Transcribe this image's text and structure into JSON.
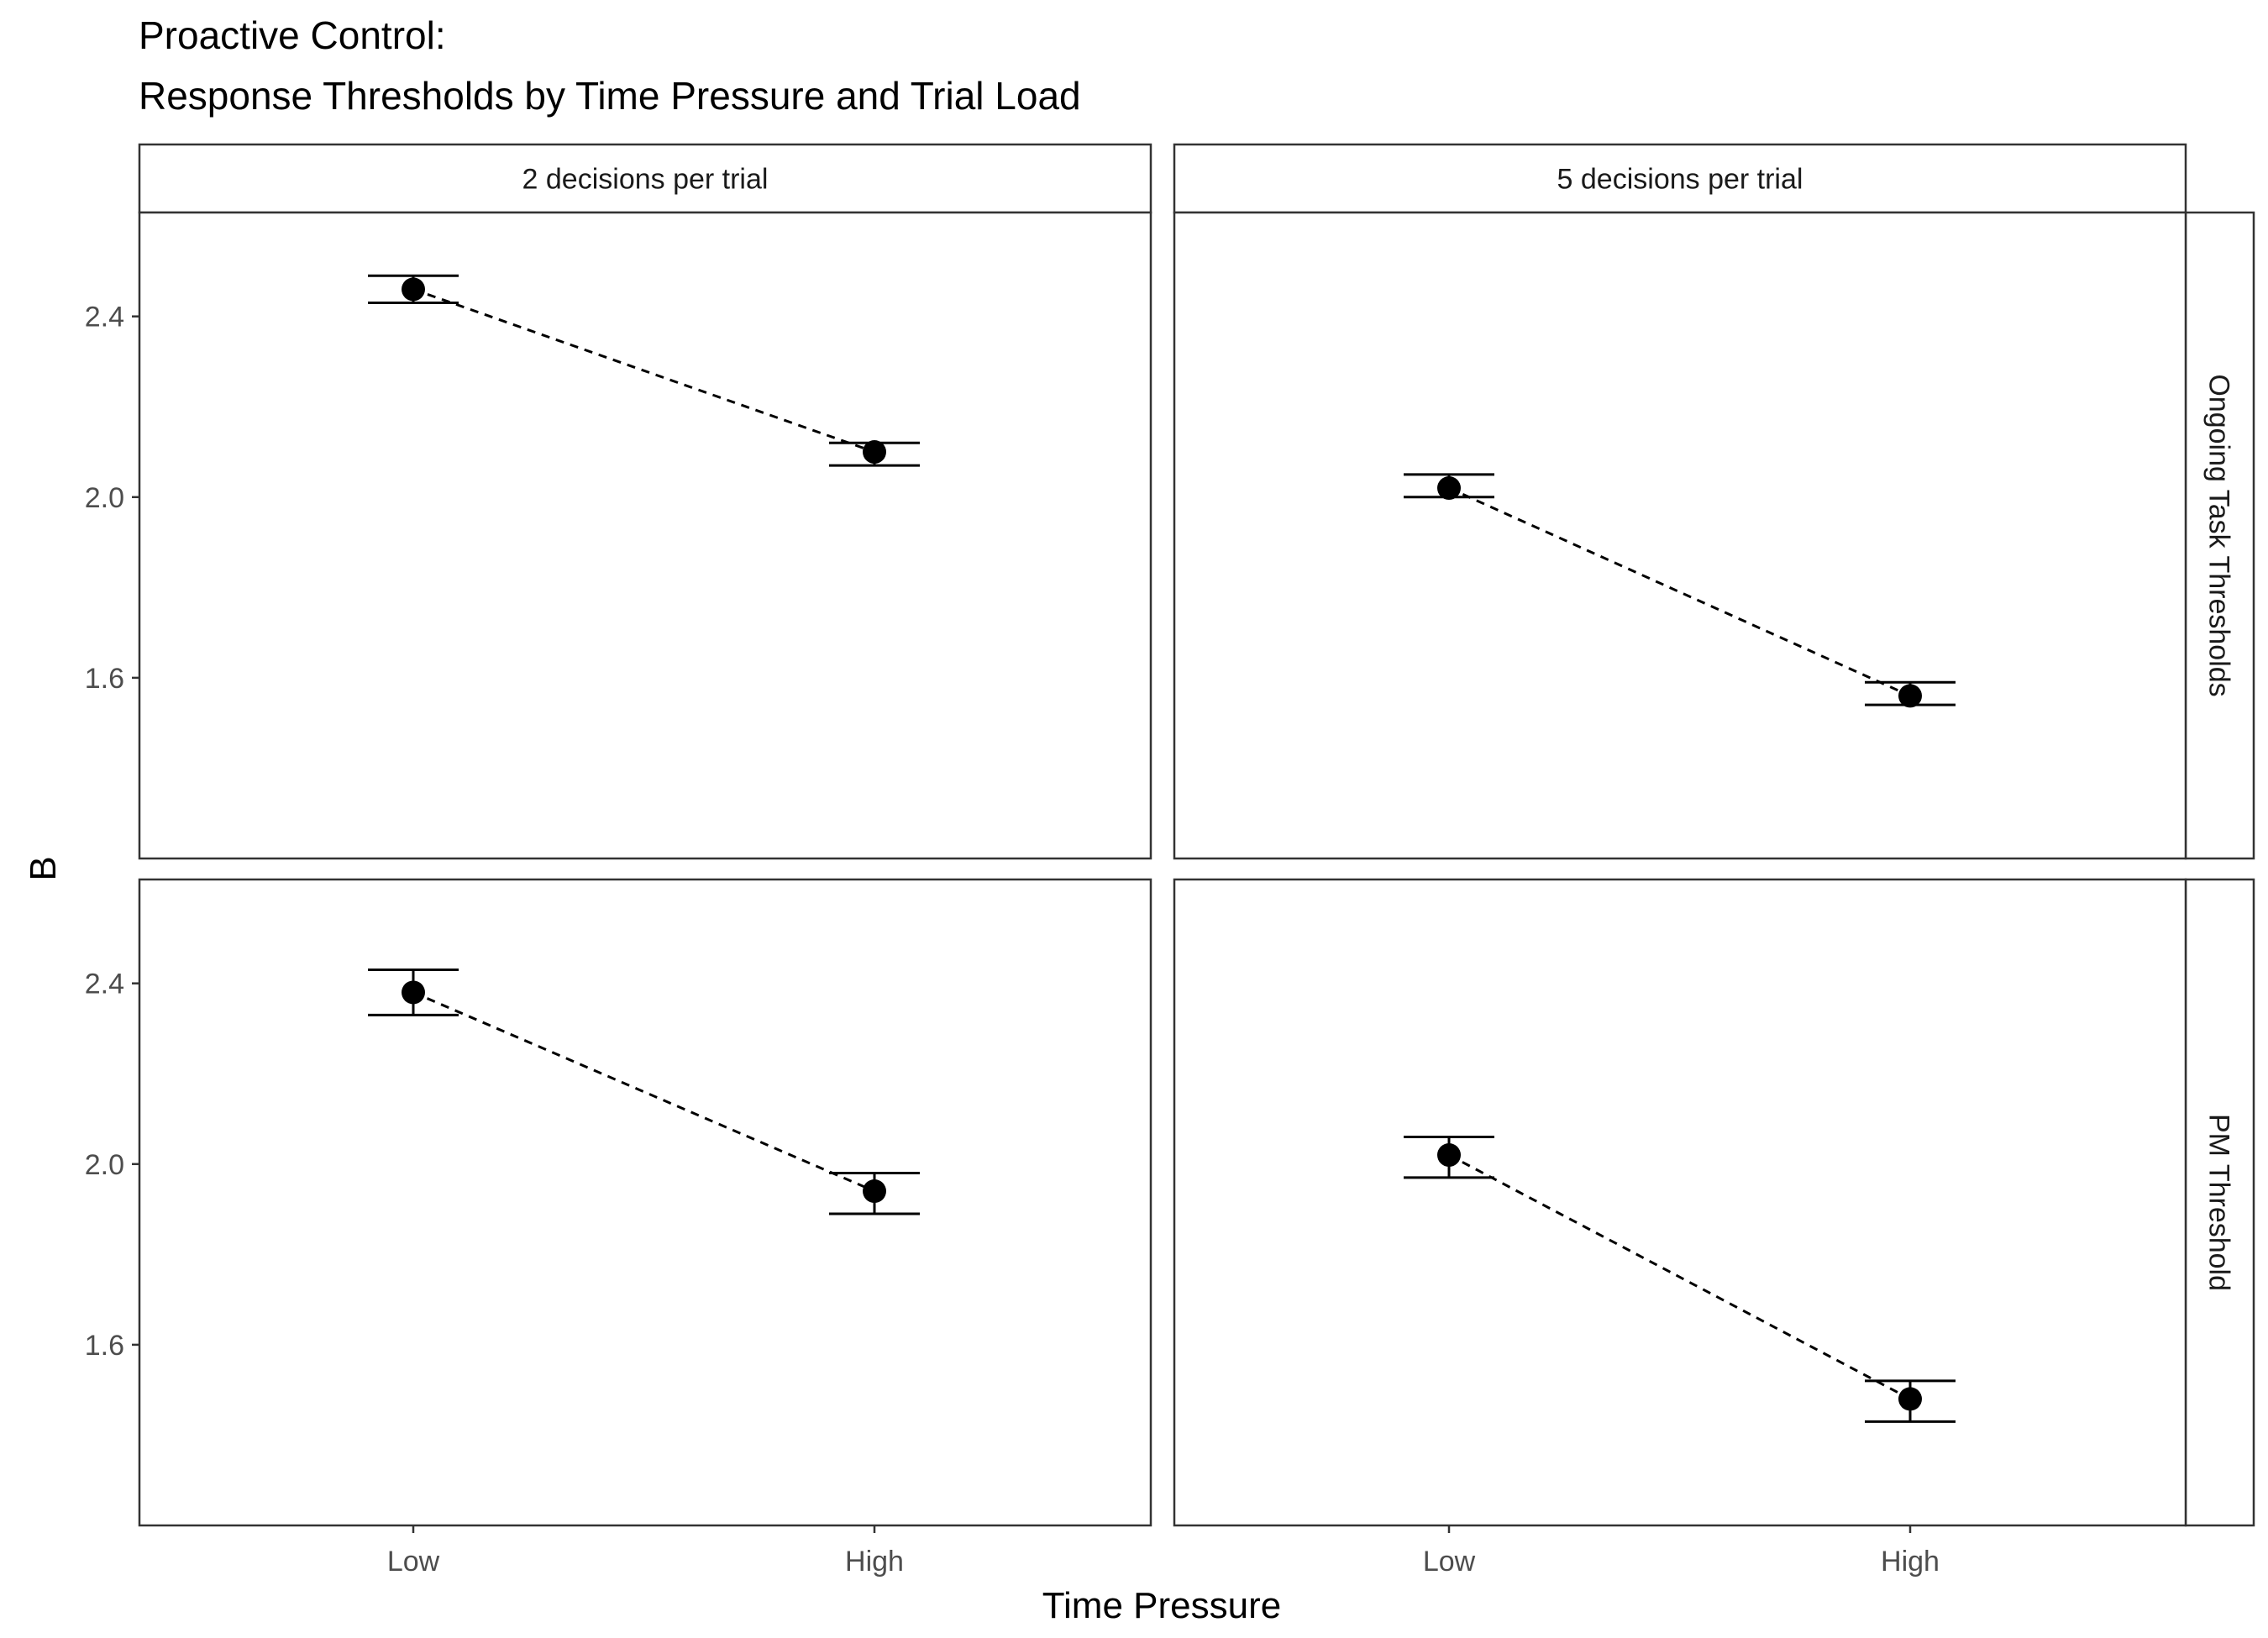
{
  "chart_data": {
    "type": "scatter",
    "title": "Proactive Control:",
    "subtitle": "Response Thresholds by Time Pressure and Trial Load",
    "xlabel": "Time Pressure",
    "ylabel": "B",
    "categories": [
      "Low",
      "High"
    ],
    "ylim": [
      1.2,
      2.63
    ],
    "yticks": [
      "1.6",
      "2.0",
      "2.4"
    ],
    "grid": false,
    "facet_columns": [
      "2 decisions per trial",
      "5 decisions per trial"
    ],
    "facet_rows": [
      "Ongoing Task Thresholds",
      "PM Threshold"
    ],
    "series_style": {
      "point_color": "#000000",
      "line": "dashed"
    },
    "panels": [
      {
        "column": "2 decisions per trial",
        "row": "Ongoing Task Thresholds",
        "points": [
          {
            "x": "Low",
            "y": 2.46,
            "lower": 2.43,
            "upper": 2.49
          },
          {
            "x": "High",
            "y": 2.1,
            "lower": 2.07,
            "upper": 2.12
          }
        ]
      },
      {
        "column": "5 decisions per trial",
        "row": "Ongoing Task Thresholds",
        "points": [
          {
            "x": "Low",
            "y": 2.02,
            "lower": 2.0,
            "upper": 2.05
          },
          {
            "x": "High",
            "y": 1.56,
            "lower": 1.54,
            "upper": 1.59
          }
        ]
      },
      {
        "column": "2 decisions per trial",
        "row": "PM Threshold",
        "points": [
          {
            "x": "Low",
            "y": 2.38,
            "lower": 2.33,
            "upper": 2.43
          },
          {
            "x": "High",
            "y": 1.94,
            "lower": 1.89,
            "upper": 1.98
          }
        ]
      },
      {
        "column": "5 decisions per trial",
        "row": "PM Threshold",
        "points": [
          {
            "x": "Low",
            "y": 2.02,
            "lower": 1.97,
            "upper": 2.06
          },
          {
            "x": "High",
            "y": 1.48,
            "lower": 1.43,
            "upper": 1.52
          }
        ]
      }
    ]
  }
}
